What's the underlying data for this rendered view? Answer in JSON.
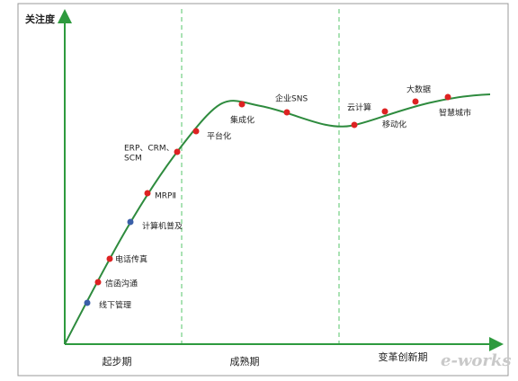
{
  "y_axis_label": "关注度",
  "phases": [
    "起步期",
    "成熟期",
    "变革创新期"
  ],
  "nodes": [
    {
      "label": "线下管理"
    },
    {
      "label": "信函沟通"
    },
    {
      "label": "电话传真"
    },
    {
      "label": "计算机普及"
    },
    {
      "label": "MRPⅡ"
    },
    {
      "label": [
        "ERP、CRM、",
        "SCM"
      ]
    },
    {
      "label": "平台化"
    },
    {
      "label": "集成化"
    },
    {
      "label": "企业SNS"
    },
    {
      "label": "云计算"
    },
    {
      "label": "移动化"
    },
    {
      "label": "大数据"
    },
    {
      "label": "智慧城市"
    }
  ],
  "watermark": "e-works"
}
